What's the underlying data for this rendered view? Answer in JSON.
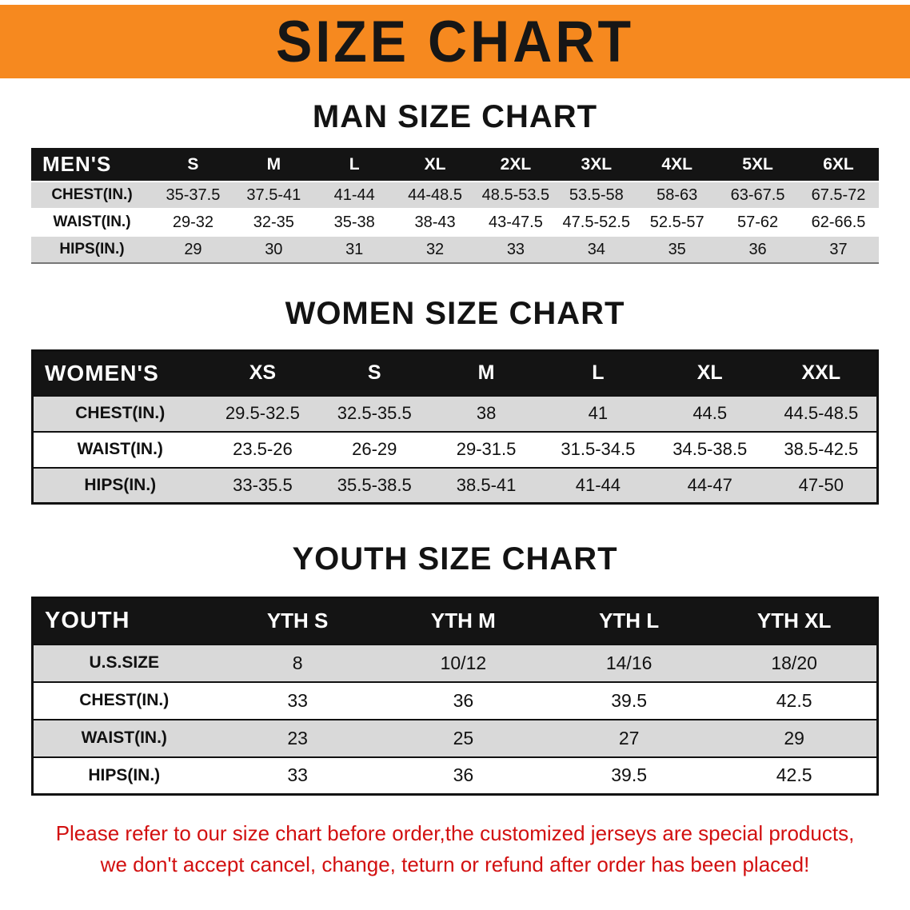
{
  "banner": {
    "title": "SIZE CHART"
  },
  "theme": {
    "banner_bg": "#f6891f",
    "header_bg": "#141414",
    "row_alt_bg": "#d9d9d9",
    "notice_color": "#d21010",
    "text_color": "#111111"
  },
  "sections": [
    {
      "heading": "MAN SIZE CHART",
      "table": {
        "corner": "MEN'S",
        "columns": [
          "S",
          "M",
          "L",
          "XL",
          "2XL",
          "3XL",
          "4XL",
          "5XL",
          "6XL"
        ],
        "rows": [
          {
            "label": "CHEST(IN.)",
            "values": [
              "35-37.5",
              "37.5-41",
              "41-44",
              "44-48.5",
              "48.5-53.5",
              "53.5-58",
              "58-63",
              "63-67.5",
              "67.5-72"
            ]
          },
          {
            "label": "WAIST(IN.)",
            "values": [
              "29-32",
              "32-35",
              "35-38",
              "38-43",
              "43-47.5",
              "47.5-52.5",
              "52.5-57",
              "57-62",
              "62-66.5"
            ]
          },
          {
            "label": "HIPS(IN.)",
            "values": [
              "29",
              "30",
              "31",
              "32",
              "33",
              "34",
              "35",
              "36",
              "37"
            ]
          }
        ]
      }
    },
    {
      "heading": "WOMEN SIZE CHART",
      "table": {
        "corner": "WOMEN'S",
        "columns": [
          "XS",
          "S",
          "M",
          "L",
          "XL",
          "XXL"
        ],
        "rows": [
          {
            "label": "CHEST(IN.)",
            "values": [
              "29.5-32.5",
              "32.5-35.5",
              "38",
              "41",
              "44.5",
              "44.5-48.5"
            ]
          },
          {
            "label": "WAIST(IN.)",
            "values": [
              "23.5-26",
              "26-29",
              "29-31.5",
              "31.5-34.5",
              "34.5-38.5",
              "38.5-42.5"
            ]
          },
          {
            "label": "HIPS(IN.)",
            "values": [
              "33-35.5",
              "35.5-38.5",
              "38.5-41",
              "41-44",
              "44-47",
              "47-50"
            ]
          }
        ]
      }
    },
    {
      "heading": "YOUTH SIZE CHART",
      "table": {
        "corner": "YOUTH",
        "columns": [
          "YTH S",
          "YTH M",
          "YTH L",
          "YTH XL"
        ],
        "rows": [
          {
            "label": "U.S.SIZE",
            "values": [
              "8",
              "10/12",
              "14/16",
              "18/20"
            ]
          },
          {
            "label": "CHEST(IN.)",
            "values": [
              "33",
              "36",
              "39.5",
              "42.5"
            ]
          },
          {
            "label": "WAIST(IN.)",
            "values": [
              "23",
              "25",
              "27",
              "29"
            ]
          },
          {
            "label": "HIPS(IN.)",
            "values": [
              "33",
              "36",
              "39.5",
              "42.5"
            ]
          }
        ]
      }
    }
  ],
  "footer": {
    "line1": "Please refer to our size chart before order,the customized jerseys are special products,",
    "line2": "we don't accept cancel, change, teturn or refund after order has been placed!"
  }
}
